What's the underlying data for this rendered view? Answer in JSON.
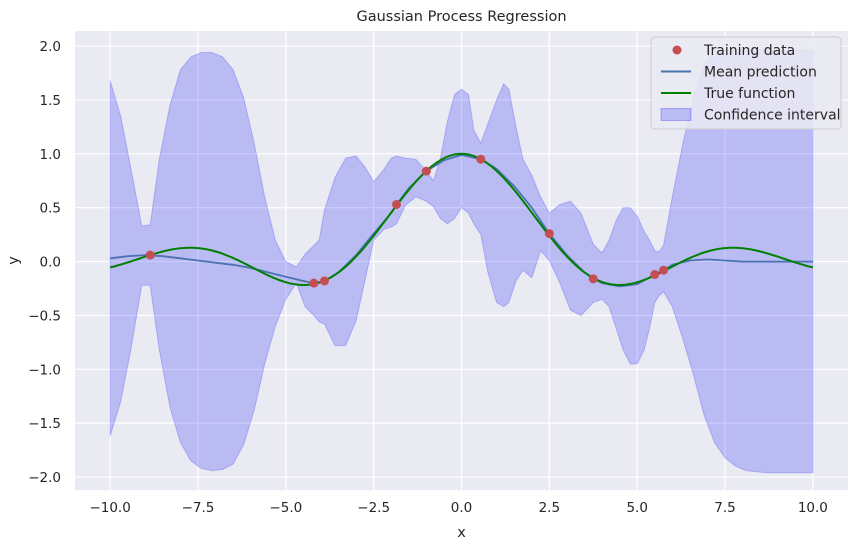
{
  "chart_data": {
    "type": "line",
    "title": "Gaussian Process Regression",
    "xlabel": "x",
    "ylabel": "y",
    "xlim": [
      -11.0,
      11.0
    ],
    "ylim": [
      -2.12,
      2.14
    ],
    "xticks": [
      -10.0,
      -7.5,
      -5.0,
      -2.5,
      0.0,
      2.5,
      5.0,
      7.5,
      10.0
    ],
    "xtick_labels": [
      "−10.0",
      "−7.5",
      "−5.0",
      "−2.5",
      "0.0",
      "2.5",
      "5.0",
      "7.5",
      "10.0"
    ],
    "yticks": [
      -2.0,
      -1.5,
      -1.0,
      -0.5,
      0.0,
      0.5,
      1.0,
      1.5,
      2.0
    ],
    "ytick_labels": [
      "−2.0",
      "−1.5",
      "−1.0",
      "−0.5",
      "0.0",
      "0.5",
      "1.0",
      "1.5",
      "2.0"
    ],
    "grid": true,
    "background": "#eaeaf2",
    "legend": {
      "placement": "top-right",
      "entries": [
        {
          "name": "Training data",
          "kind": "marker",
          "color": "#c44e52"
        },
        {
          "name": "Mean prediction",
          "kind": "line",
          "color": "#4c72b0"
        },
        {
          "name": "True function",
          "kind": "line",
          "color": "#008000"
        },
        {
          "name": "Confidence interval",
          "kind": "patch",
          "color": "#0000ff"
        }
      ]
    },
    "training_data": {
      "name": "Training data",
      "color": "#c44e52",
      "x": [
        -8.86,
        -4.2,
        -3.9,
        -1.85,
        -1.0,
        0.55,
        2.5,
        3.75,
        5.5,
        5.75
      ],
      "y": [
        0.06,
        -0.2,
        -0.18,
        0.53,
        0.84,
        0.95,
        0.26,
        -0.16,
        -0.12,
        -0.08
      ]
    },
    "true_function": {
      "name": "True function",
      "color": "#008000",
      "formula": "sin(x)/x",
      "x_range": [
        -10,
        10
      ]
    },
    "mean_prediction": {
      "name": "Mean prediction",
      "color": "#4c72b0",
      "x": [
        -10,
        -9.5,
        -9,
        -8.5,
        -8,
        -7.5,
        -7,
        -6.5,
        -6,
        -5.5,
        -5,
        -4.5,
        -4.2,
        -3.9,
        -3.5,
        -3,
        -2.5,
        -2,
        -1.85,
        -1.5,
        -1,
        -0.5,
        0,
        0.55,
        1,
        1.5,
        2,
        2.5,
        3,
        3.5,
        3.75,
        4,
        4.5,
        5,
        5.5,
        5.75,
        6,
        6.5,
        7,
        7.5,
        8,
        8.5,
        9,
        9.5,
        10
      ],
      "y": [
        0.03,
        0.05,
        0.06,
        0.05,
        0.03,
        0.01,
        -0.01,
        -0.03,
        -0.06,
        -0.1,
        -0.14,
        -0.18,
        -0.2,
        -0.18,
        -0.1,
        0.06,
        0.26,
        0.45,
        0.53,
        0.68,
        0.84,
        0.94,
        0.99,
        0.95,
        0.86,
        0.7,
        0.5,
        0.26,
        0.06,
        -0.1,
        -0.16,
        -0.2,
        -0.23,
        -0.21,
        -0.12,
        -0.08,
        -0.03,
        0.01,
        0.02,
        0.01,
        0.0,
        0.0,
        0.0,
        0.0,
        0.0
      ]
    },
    "confidence_interval": {
      "name": "Confidence interval",
      "color": "#0000ff",
      "x": [
        -10,
        -9.7,
        -9.4,
        -9.1,
        -8.86,
        -8.6,
        -8.3,
        -8.0,
        -7.7,
        -7.4,
        -7.1,
        -6.8,
        -6.5,
        -6.2,
        -5.9,
        -5.6,
        -5.3,
        -5.0,
        -4.7,
        -4.45,
        -4.2,
        -4.05,
        -3.9,
        -3.6,
        -3.3,
        -3.0,
        -2.75,
        -2.5,
        -2.2,
        -2.0,
        -1.85,
        -1.6,
        -1.3,
        -1.0,
        -0.8,
        -0.6,
        -0.4,
        -0.2,
        0.0,
        0.2,
        0.35,
        0.55,
        0.75,
        1.0,
        1.2,
        1.35,
        1.55,
        1.75,
        2.0,
        2.25,
        2.5,
        2.8,
        3.1,
        3.4,
        3.75,
        4.0,
        4.2,
        4.4,
        4.6,
        4.8,
        5.0,
        5.2,
        5.35,
        5.5,
        5.62,
        5.75,
        6.0,
        6.3,
        6.6,
        6.9,
        7.2,
        7.5,
        7.8,
        8.1,
        8.4,
        8.7,
        9.0,
        9.3,
        9.6,
        10.0
      ],
      "upper": [
        1.68,
        1.35,
        0.85,
        0.33,
        0.34,
        0.95,
        1.45,
        1.78,
        1.9,
        1.94,
        1.94,
        1.9,
        1.78,
        1.52,
        1.1,
        0.6,
        0.2,
        0.0,
        -0.05,
        0.07,
        0.15,
        0.2,
        0.48,
        0.78,
        0.96,
        0.98,
        0.88,
        0.74,
        0.86,
        0.96,
        0.98,
        0.96,
        0.95,
        0.84,
        0.75,
        0.96,
        1.3,
        1.55,
        1.6,
        1.55,
        1.22,
        1.1,
        1.28,
        1.5,
        1.65,
        1.6,
        1.25,
        0.95,
        0.8,
        0.6,
        0.45,
        0.53,
        0.56,
        0.45,
        0.16,
        0.08,
        0.2,
        0.38,
        0.5,
        0.5,
        0.42,
        0.28,
        0.2,
        0.1,
        0.09,
        0.15,
        0.6,
        1.1,
        1.52,
        1.82,
        1.96,
        1.96,
        1.96,
        1.96,
        1.96,
        1.96,
        1.96,
        1.96,
        1.96,
        1.96
      ],
      "lower": [
        -1.62,
        -1.3,
        -0.8,
        -0.22,
        -0.22,
        -0.82,
        -1.35,
        -1.68,
        -1.85,
        -1.92,
        -1.94,
        -1.93,
        -1.88,
        -1.7,
        -1.38,
        -0.95,
        -0.6,
        -0.35,
        -0.2,
        -0.42,
        -0.5,
        -0.56,
        -0.58,
        -0.78,
        -0.78,
        -0.55,
        -0.18,
        0.2,
        0.3,
        0.32,
        0.35,
        0.52,
        0.6,
        0.56,
        0.51,
        0.4,
        0.35,
        0.4,
        0.5,
        0.45,
        0.35,
        0.25,
        -0.1,
        -0.38,
        -0.42,
        -0.38,
        -0.18,
        -0.08,
        -0.15,
        0.1,
        0.01,
        -0.2,
        -0.45,
        -0.5,
        -0.38,
        -0.35,
        -0.42,
        -0.62,
        -0.82,
        -0.95,
        -0.95,
        -0.82,
        -0.62,
        -0.38,
        -0.32,
        -0.28,
        -0.42,
        -0.72,
        -1.05,
        -1.42,
        -1.68,
        -1.82,
        -1.9,
        -1.94,
        -1.95,
        -1.96,
        -1.96,
        -1.96,
        -1.96,
        -1.96
      ]
    }
  }
}
